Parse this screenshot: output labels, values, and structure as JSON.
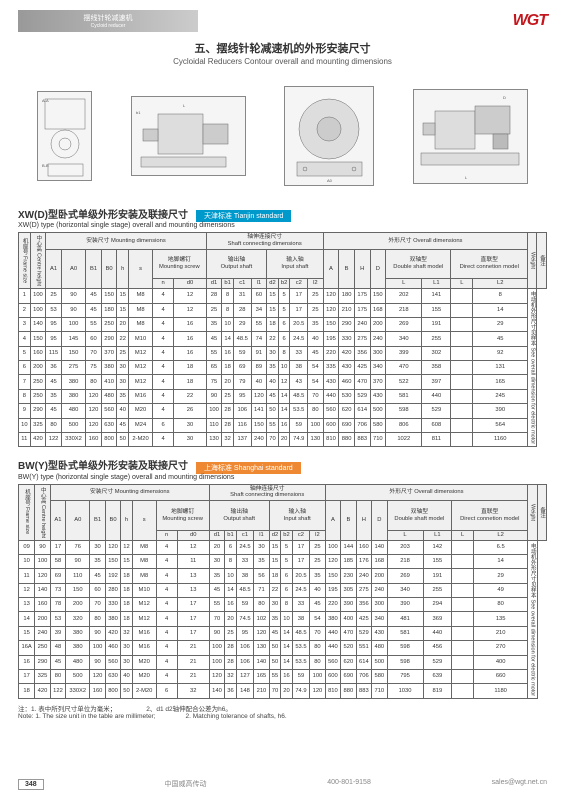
{
  "page_number": "348",
  "logo": "WGT",
  "header_bar": {
    "cn": "摆线针轮减速机",
    "en": "Cycloid reducer"
  },
  "title": {
    "cn": "五、摆线针轮减速机的外形安装尺寸",
    "en": "Cycloidal Reducers Contour overall and mounting dimensions"
  },
  "section1": {
    "title_cn": "XW(D)型卧式单级外形安装及联接尺寸",
    "title_en": "XW(D) type (horizontal single stage) overall and mounting dimensions",
    "badge": "天津标准 Tianjin standard"
  },
  "section2": {
    "title_cn": "BW(Y)型卧式单级外形安装及联接尺寸",
    "title_en": "BW(Y) type (horizontal single stage) overall and mounting dimensions",
    "badge": "上海标准 Shanghai standard"
  },
  "table_headers": {
    "center_h": "中心高\nCentre height",
    "frame": "机座号\nFrame size",
    "mounting": "安装尺寸  Mounting dimensions",
    "shaft_conn": "轴伸连接尺寸\nShaft connecting dimensions",
    "output_shaft": "输出轴\nOutput shaft",
    "input_shaft": "输入轴\nInput shaft",
    "overall": "外形尺寸  Overall dimensions",
    "mounting_screw": "地脚螺钉\nMounting screw",
    "double_shaft": "双轴型\nDouble shaft model",
    "direct": "直联型\nDirect connetion model",
    "weight": "W\ne\ni\ng\nh\nt",
    "remark": "备注\nSee overall dimension chart\nfor electric motor",
    "cols": [
      "A1",
      "A0",
      "B1",
      "B0",
      "h",
      "s",
      "n",
      "d0",
      "d1",
      "b1",
      "c1",
      "l1",
      "d2",
      "b2",
      "c2",
      "l2",
      "A",
      "B",
      "H",
      "D",
      "L",
      "L1",
      "L",
      "L2"
    ]
  },
  "table1_rows": [
    [
      "1",
      "100",
      "25",
      "90",
      "45",
      "150",
      "15",
      "M8",
      "4",
      "12",
      "28",
      "8",
      "31",
      "60",
      "15",
      "5",
      "17",
      "25",
      "120",
      "180",
      "175",
      "150",
      "202",
      "141",
      "",
      "8"
    ],
    [
      "2",
      "100",
      "53",
      "90",
      "45",
      "180",
      "15",
      "M8",
      "4",
      "12",
      "25",
      "8",
      "28",
      "34",
      "15",
      "5",
      "17",
      "25",
      "120",
      "210",
      "175",
      "168",
      "218",
      "155",
      "",
      "14"
    ],
    [
      "3",
      "140",
      "95",
      "100",
      "55",
      "250",
      "20",
      "M8",
      "4",
      "16",
      "35",
      "10",
      "29",
      "55",
      "18",
      "6",
      "20.5",
      "35",
      "150",
      "290",
      "240",
      "200",
      "269",
      "191",
      "",
      "29"
    ],
    [
      "4",
      "150",
      "95",
      "145",
      "60",
      "290",
      "22",
      "M10",
      "4",
      "16",
      "45",
      "14",
      "48.5",
      "74",
      "22",
      "6",
      "24.5",
      "40",
      "195",
      "330",
      "275",
      "240",
      "340",
      "255",
      "",
      "45"
    ],
    [
      "5",
      "160",
      "115",
      "150",
      "70",
      "370",
      "25",
      "M12",
      "4",
      "16",
      "55",
      "16",
      "59",
      "91",
      "30",
      "8",
      "33",
      "45",
      "220",
      "420",
      "356",
      "300",
      "399",
      "302",
      "",
      "92"
    ],
    [
      "6",
      "200",
      "36",
      "275",
      "75",
      "380",
      "30",
      "M12",
      "4",
      "18",
      "65",
      "18",
      "69",
      "89",
      "35",
      "10",
      "38",
      "54",
      "335",
      "430",
      "425",
      "340",
      "470",
      "358",
      "",
      "131"
    ],
    [
      "7",
      "250",
      "45",
      "380",
      "80",
      "410",
      "30",
      "M12",
      "4",
      "18",
      "75",
      "20",
      "79",
      "40",
      "40",
      "12",
      "43",
      "54",
      "430",
      "460",
      "470",
      "370",
      "522",
      "397",
      "",
      "165"
    ],
    [
      "8",
      "250",
      "35",
      "380",
      "120",
      "480",
      "35",
      "M16",
      "4",
      "22",
      "90",
      "25",
      "95",
      "120",
      "45",
      "14",
      "48.5",
      "70",
      "440",
      "530",
      "529",
      "430",
      "581",
      "440",
      "",
      "245"
    ],
    [
      "9",
      "290",
      "45",
      "480",
      "120",
      "560",
      "40",
      "M20",
      "4",
      "26",
      "100",
      "28",
      "106",
      "141",
      "50",
      "14",
      "53.5",
      "80",
      "560",
      "620",
      "614",
      "500",
      "598",
      "529",
      "",
      "390"
    ],
    [
      "10",
      "325",
      "80",
      "500",
      "120",
      "630",
      "45",
      "M24",
      "6",
      "30",
      "110",
      "28",
      "116",
      "150",
      "55",
      "16",
      "59",
      "100",
      "600",
      "690",
      "706",
      "580",
      "806",
      "608",
      "",
      "564"
    ],
    [
      "11",
      "420",
      "122",
      "330X2",
      "160",
      "800",
      "50",
      "2-M20",
      "4",
      "30",
      "130",
      "32",
      "137",
      "240",
      "70",
      "20",
      "74.9",
      "130",
      "810",
      "880",
      "883",
      "710",
      "1022",
      "811",
      "",
      "1160"
    ]
  ],
  "table2_rows": [
    [
      "09",
      "90",
      "17",
      "76",
      "30",
      "120",
      "12",
      "M8",
      "4",
      "12",
      "20",
      "6",
      "24.5",
      "30",
      "15",
      "5",
      "17",
      "25",
      "100",
      "144",
      "160",
      "140",
      "203",
      "142",
      "",
      "6.5"
    ],
    [
      "10",
      "100",
      "58",
      "90",
      "35",
      "150",
      "15",
      "M8",
      "4",
      "11",
      "30",
      "8",
      "33",
      "35",
      "15",
      "5",
      "17",
      "25",
      "120",
      "185",
      "176",
      "168",
      "218",
      "155",
      "",
      "14"
    ],
    [
      "11",
      "120",
      "69",
      "110",
      "45",
      "192",
      "18",
      "M8",
      "4",
      "13",
      "35",
      "10",
      "38",
      "56",
      "18",
      "6",
      "20.5",
      "35",
      "150",
      "230",
      "240",
      "200",
      "269",
      "191",
      "",
      "29"
    ],
    [
      "12",
      "140",
      "73",
      "150",
      "60",
      "280",
      "18",
      "M10",
      "4",
      "13",
      "45",
      "14",
      "48.5",
      "71",
      "22",
      "6",
      "24.5",
      "40",
      "195",
      "305",
      "275",
      "240",
      "340",
      "255",
      "",
      "49"
    ],
    [
      "13",
      "160",
      "78",
      "200",
      "70",
      "330",
      "18",
      "M12",
      "4",
      "17",
      "55",
      "16",
      "59",
      "80",
      "30",
      "8",
      "33",
      "45",
      "220",
      "390",
      "356",
      "300",
      "390",
      "294",
      "",
      "80"
    ],
    [
      "14",
      "200",
      "53",
      "320",
      "80",
      "380",
      "18",
      "M12",
      "4",
      "17",
      "70",
      "20",
      "74.5",
      "102",
      "35",
      "10",
      "38",
      "54",
      "380",
      "400",
      "425",
      "340",
      "481",
      "369",
      "",
      "135"
    ],
    [
      "15",
      "240",
      "39",
      "380",
      "90",
      "420",
      "32",
      "M16",
      "4",
      "17",
      "90",
      "25",
      "95",
      "120",
      "45",
      "14",
      "48.5",
      "70",
      "440",
      "470",
      "529",
      "430",
      "581",
      "440",
      "",
      "210"
    ],
    [
      "16A",
      "250",
      "48",
      "380",
      "100",
      "460",
      "30",
      "M16",
      "4",
      "21",
      "100",
      "28",
      "106",
      "130",
      "50",
      "14",
      "53.5",
      "80",
      "440",
      "520",
      "551",
      "480",
      "598",
      "456",
      "",
      "270"
    ],
    [
      "16",
      "290",
      "45",
      "480",
      "90",
      "560",
      "30",
      "M20",
      "4",
      "21",
      "100",
      "28",
      "106",
      "140",
      "50",
      "14",
      "53.5",
      "80",
      "560",
      "620",
      "614",
      "500",
      "598",
      "529",
      "",
      "400"
    ],
    [
      "17",
      "325",
      "80",
      "500",
      "120",
      "630",
      "40",
      "M20",
      "4",
      "21",
      "120",
      "32",
      "127",
      "165",
      "55",
      "16",
      "59",
      "100",
      "600",
      "690",
      "706",
      "580",
      "795",
      "639",
      "",
      "660"
    ],
    [
      "18",
      "420",
      "122",
      "330X2",
      "160",
      "800",
      "50",
      "2-M20",
      "6",
      "32",
      "140",
      "36",
      "148",
      "210",
      "70",
      "20",
      "74.9",
      "120",
      "810",
      "880",
      "883",
      "710",
      "1030",
      "819",
      "",
      "1180"
    ]
  ],
  "notes": {
    "cn1": "注：1. 表中所列尺寸单位为毫米；",
    "cn2": "2、d1 d2轴伸配合公差为h6。",
    "en1": "Note: 1. The size unit in the table are millimeter;",
    "en2": "2. Matching tolerance of shafts, h6."
  },
  "footer": {
    "company": "中国威高传动",
    "phone": "400-801-9158",
    "email": "sales@wgt.net.cn"
  },
  "colors": {
    "logo": "#c4171d",
    "badge_blue": "#0099cc",
    "badge_orange": "#ee8833"
  }
}
